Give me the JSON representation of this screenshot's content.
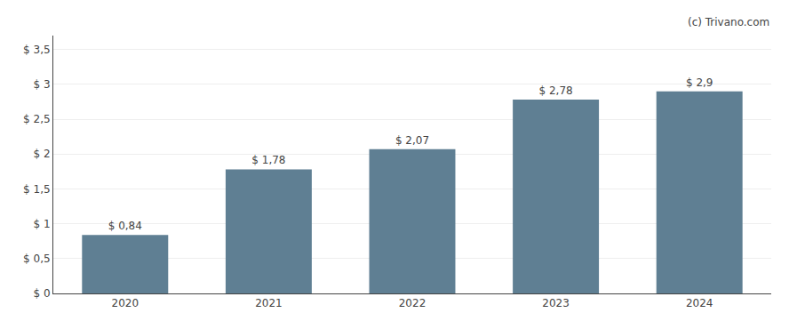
{
  "chart_data": {
    "type": "bar",
    "categories": [
      "2020",
      "2021",
      "2022",
      "2023",
      "2024"
    ],
    "values": [
      0.84,
      1.78,
      2.07,
      2.78,
      2.9
    ],
    "value_labels": [
      "$ 0,84",
      "$ 1,78",
      "$ 2,07",
      "$ 2,78",
      "$ 2,9"
    ],
    "data_labels": true,
    "color": "#5f7f93",
    "ylim": [
      0,
      3.7
    ],
    "yticks": [
      {
        "value": 0,
        "label": "$ 0"
      },
      {
        "value": 0.5,
        "label": "$ 0,5"
      },
      {
        "value": 1.0,
        "label": "$ 1"
      },
      {
        "value": 1.5,
        "label": "$ 1,5"
      },
      {
        "value": 2.0,
        "label": "$ 2"
      },
      {
        "value": 2.5,
        "label": "$ 2,5"
      },
      {
        "value": 3.0,
        "label": "$ 3"
      },
      {
        "value": 3.5,
        "label": "$ 3,5"
      }
    ],
    "grid": true,
    "annotations": [
      "(c) Trivano.com"
    ]
  }
}
